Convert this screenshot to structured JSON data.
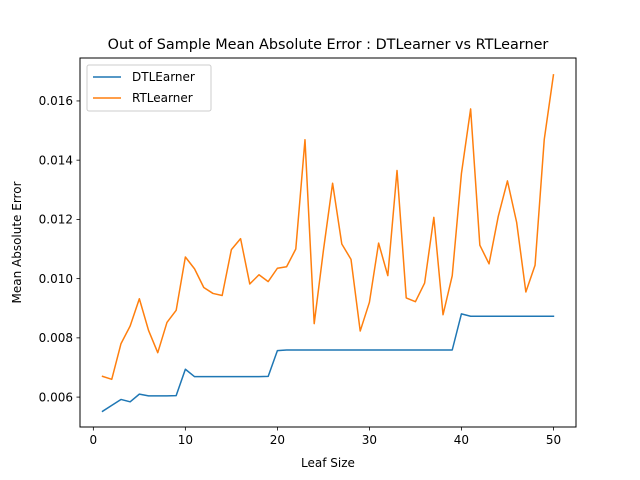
{
  "chart_data": {
    "type": "line",
    "title": "Out of Sample Mean Absolute Error : DTLearner vs RTLearner",
    "xlabel": "Leaf Size",
    "ylabel": "Mean Absolute Error",
    "xlim": [
      -1.45,
      52.45
    ],
    "ylim": [
      0.00499,
      0.01745
    ],
    "xticks": [
      0,
      10,
      20,
      30,
      40,
      50
    ],
    "xtick_labels": [
      "0",
      "10",
      "20",
      "30",
      "40",
      "50"
    ],
    "yticks": [
      0.006,
      0.008,
      0.01,
      0.012,
      0.014,
      0.016
    ],
    "ytick_labels": [
      "0.006",
      "0.008",
      "0.010",
      "0.012",
      "0.014",
      "0.016"
    ],
    "grid": false,
    "legend_position": "upper-left",
    "x": [
      1,
      2,
      3,
      4,
      5,
      6,
      7,
      8,
      9,
      10,
      11,
      12,
      13,
      14,
      15,
      16,
      17,
      18,
      19,
      20,
      21,
      22,
      23,
      24,
      25,
      26,
      27,
      28,
      29,
      30,
      31,
      32,
      33,
      34,
      35,
      36,
      37,
      38,
      39,
      40,
      41,
      42,
      43,
      44,
      45,
      46,
      47,
      48,
      49,
      50
    ],
    "series": [
      {
        "name": "DTLEarner",
        "color": "#1f77b4",
        "values": [
          0.00552,
          0.00572,
          0.00592,
          0.00584,
          0.0061,
          0.00604,
          0.00604,
          0.00604,
          0.00605,
          0.00694,
          0.00669,
          0.00669,
          0.00669,
          0.00669,
          0.00669,
          0.00669,
          0.00669,
          0.00669,
          0.0067,
          0.00757,
          0.00759,
          0.00759,
          0.00759,
          0.00759,
          0.00759,
          0.00759,
          0.00759,
          0.00759,
          0.00759,
          0.00759,
          0.00759,
          0.00759,
          0.00759,
          0.00759,
          0.00759,
          0.00759,
          0.00759,
          0.00759,
          0.00759,
          0.00881,
          0.00873,
          0.00873,
          0.00873,
          0.00873,
          0.00873,
          0.00873,
          0.00873,
          0.00873,
          0.00873,
          0.00873
        ]
      },
      {
        "name": "RTLearner",
        "color": "#ff7f0e",
        "values": [
          0.0067,
          0.0066,
          0.0078,
          0.0084,
          0.00932,
          0.00825,
          0.0075,
          0.00852,
          0.00893,
          0.01073,
          0.01033,
          0.0097,
          0.0095,
          0.00943,
          0.01098,
          0.01135,
          0.00982,
          0.01013,
          0.0099,
          0.01035,
          0.0104,
          0.011,
          0.01469,
          0.00848,
          0.01095,
          0.01322,
          0.01117,
          0.01065,
          0.00823,
          0.0092,
          0.0112,
          0.0101,
          0.01365,
          0.00935,
          0.00922,
          0.00985,
          0.01207,
          0.00878,
          0.0101,
          0.01355,
          0.01573,
          0.01113,
          0.0105,
          0.0121,
          0.0133,
          0.0119,
          0.00955,
          0.01045,
          0.0147,
          0.01688
        ]
      }
    ]
  }
}
